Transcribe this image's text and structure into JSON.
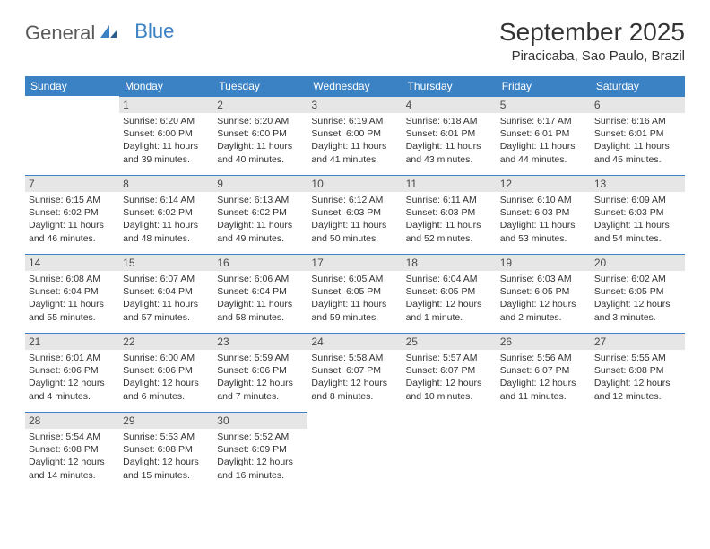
{
  "logo": {
    "text1": "General",
    "text2": "Blue"
  },
  "title": "September 2025",
  "location": "Piracicaba, Sao Paulo, Brazil",
  "colors": {
    "header_bg": "#3b82c4",
    "header_text": "#ffffff",
    "daybar_bg": "#e6e6e6",
    "daybar_border": "#3b82c4",
    "text": "#333333",
    "background": "#ffffff"
  },
  "weekdays": [
    "Sunday",
    "Monday",
    "Tuesday",
    "Wednesday",
    "Thursday",
    "Friday",
    "Saturday"
  ],
  "weeks": [
    [
      null,
      {
        "n": "1",
        "sr": "6:20 AM",
        "ss": "6:00 PM",
        "dl": "11 hours and 39 minutes."
      },
      {
        "n": "2",
        "sr": "6:20 AM",
        "ss": "6:00 PM",
        "dl": "11 hours and 40 minutes."
      },
      {
        "n": "3",
        "sr": "6:19 AM",
        "ss": "6:00 PM",
        "dl": "11 hours and 41 minutes."
      },
      {
        "n": "4",
        "sr": "6:18 AM",
        "ss": "6:01 PM",
        "dl": "11 hours and 43 minutes."
      },
      {
        "n": "5",
        "sr": "6:17 AM",
        "ss": "6:01 PM",
        "dl": "11 hours and 44 minutes."
      },
      {
        "n": "6",
        "sr": "6:16 AM",
        "ss": "6:01 PM",
        "dl": "11 hours and 45 minutes."
      }
    ],
    [
      {
        "n": "7",
        "sr": "6:15 AM",
        "ss": "6:02 PM",
        "dl": "11 hours and 46 minutes."
      },
      {
        "n": "8",
        "sr": "6:14 AM",
        "ss": "6:02 PM",
        "dl": "11 hours and 48 minutes."
      },
      {
        "n": "9",
        "sr": "6:13 AM",
        "ss": "6:02 PM",
        "dl": "11 hours and 49 minutes."
      },
      {
        "n": "10",
        "sr": "6:12 AM",
        "ss": "6:03 PM",
        "dl": "11 hours and 50 minutes."
      },
      {
        "n": "11",
        "sr": "6:11 AM",
        "ss": "6:03 PM",
        "dl": "11 hours and 52 minutes."
      },
      {
        "n": "12",
        "sr": "6:10 AM",
        "ss": "6:03 PM",
        "dl": "11 hours and 53 minutes."
      },
      {
        "n": "13",
        "sr": "6:09 AM",
        "ss": "6:03 PM",
        "dl": "11 hours and 54 minutes."
      }
    ],
    [
      {
        "n": "14",
        "sr": "6:08 AM",
        "ss": "6:04 PM",
        "dl": "11 hours and 55 minutes."
      },
      {
        "n": "15",
        "sr": "6:07 AM",
        "ss": "6:04 PM",
        "dl": "11 hours and 57 minutes."
      },
      {
        "n": "16",
        "sr": "6:06 AM",
        "ss": "6:04 PM",
        "dl": "11 hours and 58 minutes."
      },
      {
        "n": "17",
        "sr": "6:05 AM",
        "ss": "6:05 PM",
        "dl": "11 hours and 59 minutes."
      },
      {
        "n": "18",
        "sr": "6:04 AM",
        "ss": "6:05 PM",
        "dl": "12 hours and 1 minute."
      },
      {
        "n": "19",
        "sr": "6:03 AM",
        "ss": "6:05 PM",
        "dl": "12 hours and 2 minutes."
      },
      {
        "n": "20",
        "sr": "6:02 AM",
        "ss": "6:05 PM",
        "dl": "12 hours and 3 minutes."
      }
    ],
    [
      {
        "n": "21",
        "sr": "6:01 AM",
        "ss": "6:06 PM",
        "dl": "12 hours and 4 minutes."
      },
      {
        "n": "22",
        "sr": "6:00 AM",
        "ss": "6:06 PM",
        "dl": "12 hours and 6 minutes."
      },
      {
        "n": "23",
        "sr": "5:59 AM",
        "ss": "6:06 PM",
        "dl": "12 hours and 7 minutes."
      },
      {
        "n": "24",
        "sr": "5:58 AM",
        "ss": "6:07 PM",
        "dl": "12 hours and 8 minutes."
      },
      {
        "n": "25",
        "sr": "5:57 AM",
        "ss": "6:07 PM",
        "dl": "12 hours and 10 minutes."
      },
      {
        "n": "26",
        "sr": "5:56 AM",
        "ss": "6:07 PM",
        "dl": "12 hours and 11 minutes."
      },
      {
        "n": "27",
        "sr": "5:55 AM",
        "ss": "6:08 PM",
        "dl": "12 hours and 12 minutes."
      }
    ],
    [
      {
        "n": "28",
        "sr": "5:54 AM",
        "ss": "6:08 PM",
        "dl": "12 hours and 14 minutes."
      },
      {
        "n": "29",
        "sr": "5:53 AM",
        "ss": "6:08 PM",
        "dl": "12 hours and 15 minutes."
      },
      {
        "n": "30",
        "sr": "5:52 AM",
        "ss": "6:09 PM",
        "dl": "12 hours and 16 minutes."
      },
      null,
      null,
      null,
      null
    ]
  ],
  "labels": {
    "sunrise": "Sunrise:",
    "sunset": "Sunset:",
    "daylight": "Daylight:"
  }
}
